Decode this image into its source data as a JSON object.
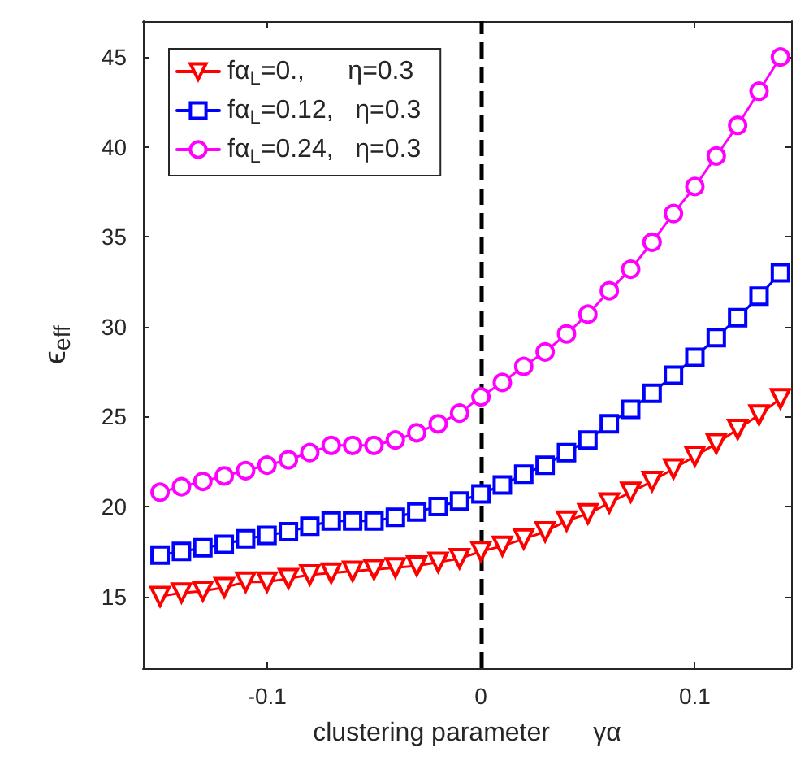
{
  "chart_data": {
    "type": "line",
    "xlabel": "clustering parameter      γα",
    "ylabel": "ϵ$_{eff}$",
    "x": [
      -0.15,
      -0.14,
      -0.13,
      -0.12,
      -0.11,
      -0.1,
      -0.09,
      -0.08,
      -0.07,
      -0.06,
      -0.05,
      -0.04,
      -0.03,
      -0.02,
      -0.01,
      0,
      0.01,
      0.02,
      0.03,
      0.04,
      0.05,
      0.06,
      0.07,
      0.08,
      0.09,
      0.1,
      0.11,
      0.12,
      0.13,
      0.14
    ],
    "series": [
      {
        "name": "fα$_{L}$=0.,      η=0.3",
        "color": "#ff0000",
        "marker": "triangle-down",
        "values": [
          15.0,
          15.2,
          15.3,
          15.5,
          15.8,
          15.8,
          16.0,
          16.2,
          16.3,
          16.4,
          16.5,
          16.6,
          16.7,
          16.9,
          17.1,
          17.5,
          17.8,
          18.2,
          18.6,
          19.2,
          19.6,
          20.2,
          20.8,
          21.4,
          22.1,
          22.8,
          23.5,
          24.3,
          25.1,
          26.0
        ]
      },
      {
        "name": "fα$_{L}$=0.12,   η=0.3",
        "color": "#0000ff",
        "marker": "square",
        "values": [
          17.3,
          17.5,
          17.7,
          17.9,
          18.2,
          18.4,
          18.6,
          18.9,
          19.2,
          19.2,
          19.2,
          19.4,
          19.7,
          20.0,
          20.3,
          20.7,
          21.2,
          21.8,
          22.3,
          23.0,
          23.7,
          24.6,
          25.4,
          26.3,
          27.3,
          28.3,
          29.4,
          30.5,
          31.7,
          33.0
        ]
      },
      {
        "name": "fα$_{L}$=0.24,   η=0.3",
        "color": "#ff00ff",
        "marker": "circle",
        "values": [
          20.8,
          21.1,
          21.4,
          21.7,
          22.0,
          22.3,
          22.6,
          23.0,
          23.4,
          23.4,
          23.4,
          23.7,
          24.1,
          24.6,
          25.2,
          26.1,
          26.9,
          27.8,
          28.6,
          29.6,
          30.7,
          32.0,
          33.2,
          34.7,
          36.3,
          37.8,
          39.5,
          41.2,
          43.1,
          45.0
        ]
      }
    ],
    "xlim": [
      -0.158,
      0.145
    ],
    "ylim": [
      11,
      47
    ],
    "xticks": [
      -0.1,
      0,
      0.1
    ],
    "yticks": [
      15,
      20,
      25,
      30,
      35,
      40,
      45
    ],
    "ref_lines": [
      {
        "axis": "x",
        "value": 0,
        "color": "#000000",
        "line_style": "dashed"
      }
    ],
    "grid": false,
    "legend": "top left"
  }
}
